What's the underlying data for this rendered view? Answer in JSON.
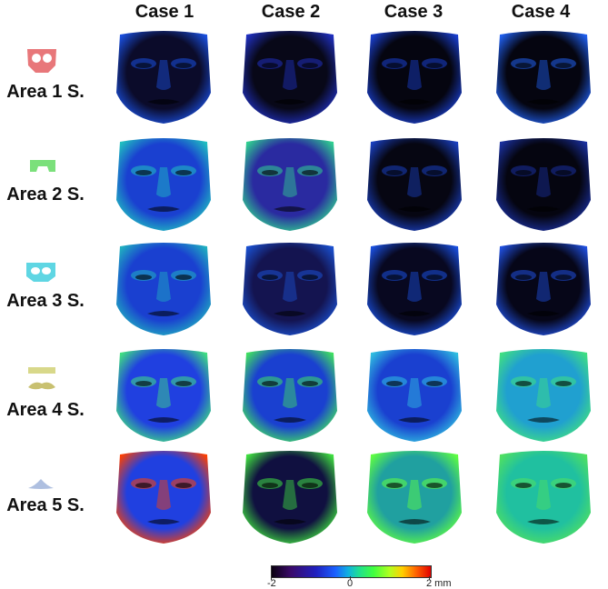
{
  "columns": [
    "Case 1",
    "Case 2",
    "Case 3",
    "Case 4"
  ],
  "rows": [
    {
      "label": "Area 1 S.",
      "icon": "mask-area-1-icon",
      "color": "#e8777a"
    },
    {
      "label": "Area 2 S.",
      "icon": "mask-area-2-icon",
      "color": "#7be07b"
    },
    {
      "label": "Area 3 S.",
      "icon": "mask-area-3-icon",
      "color": "#5fd6e3"
    },
    {
      "label": "Area 4 S.",
      "icon": "mask-area-4-icon",
      "color": "#d8d88a"
    },
    {
      "label": "Area 5 S.",
      "icon": "mask-area-5-icon",
      "color": "#aebfe0"
    }
  ],
  "colorbar": {
    "min_label": "-2",
    "mid_label": "0",
    "max_label": "2 mm",
    "colors": [
      "#0a0010",
      "#3a0a6a",
      "#2020c0",
      "#1a60ff",
      "#10b0e0",
      "#20e090",
      "#40ff40",
      "#b0ff20",
      "#ffd000",
      "#ff6000",
      "#e00000"
    ]
  }
}
